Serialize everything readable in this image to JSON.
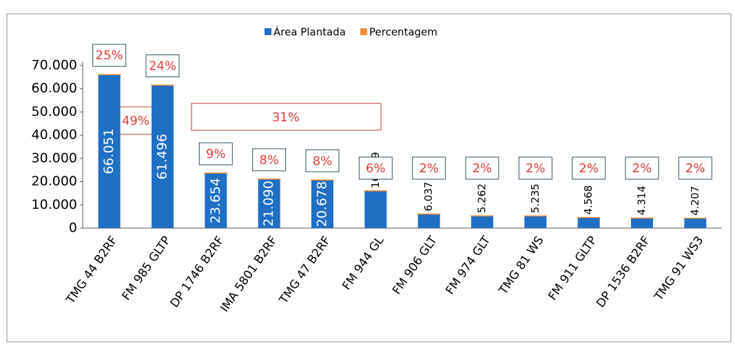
{
  "chart_data": {
    "type": "bar",
    "categories": [
      "TMG 44 B2RF",
      "FM 985 GLTP",
      "DP 1746 B2RF",
      "IMA 5801 B2RF",
      "TMG 47 B2RF",
      "FM 944 GL",
      "FM 906 GLT",
      "FM 974 GLT",
      "TMG 81 WS",
      "FM 911 GLTP",
      "DP 1536 B2RF",
      "TMG 91 WS3"
    ],
    "series": [
      {
        "name": "Área Plantada",
        "color": "#1f6fc5",
        "values": [
          66051,
          61496,
          23654,
          21090,
          20678,
          16029,
          6037,
          5262,
          5235,
          4568,
          4314,
          4207
        ],
        "value_labels": [
          "66.051",
          "61.496",
          "23.654",
          "21.090",
          "20.678",
          "16.029",
          "6.037",
          "5.262",
          "5.235",
          "4.568",
          "4.314",
          "4.207"
        ]
      },
      {
        "name": "Percentagem",
        "color": "#f28c3c",
        "values": [
          25,
          24,
          9,
          8,
          8,
          6,
          2,
          2,
          2,
          2,
          2,
          2
        ],
        "value_labels": [
          "25%",
          "24%",
          "9%",
          "8%",
          "8%",
          "6%",
          "2%",
          "2%",
          "2%",
          "2%",
          "2%",
          "2%"
        ]
      }
    ],
    "annotations": [
      "49%",
      "31%"
    ],
    "ylim": [
      0,
      70000
    ],
    "yticks": [
      0,
      {
        "value": 10000,
        "label": "10.000"
      },
      {
        "value": 20000,
        "label": "20.000"
      },
      {
        "value": 30000,
        "label": "30.000"
      },
      {
        "value": 40000,
        "label": "40.000"
      },
      {
        "value": 50000,
        "label": "50.000"
      },
      {
        "value": 60000,
        "label": "60.000"
      },
      {
        "value": 70000,
        "label": "70.000"
      }
    ],
    "stacked": true,
    "legend": "top"
  }
}
